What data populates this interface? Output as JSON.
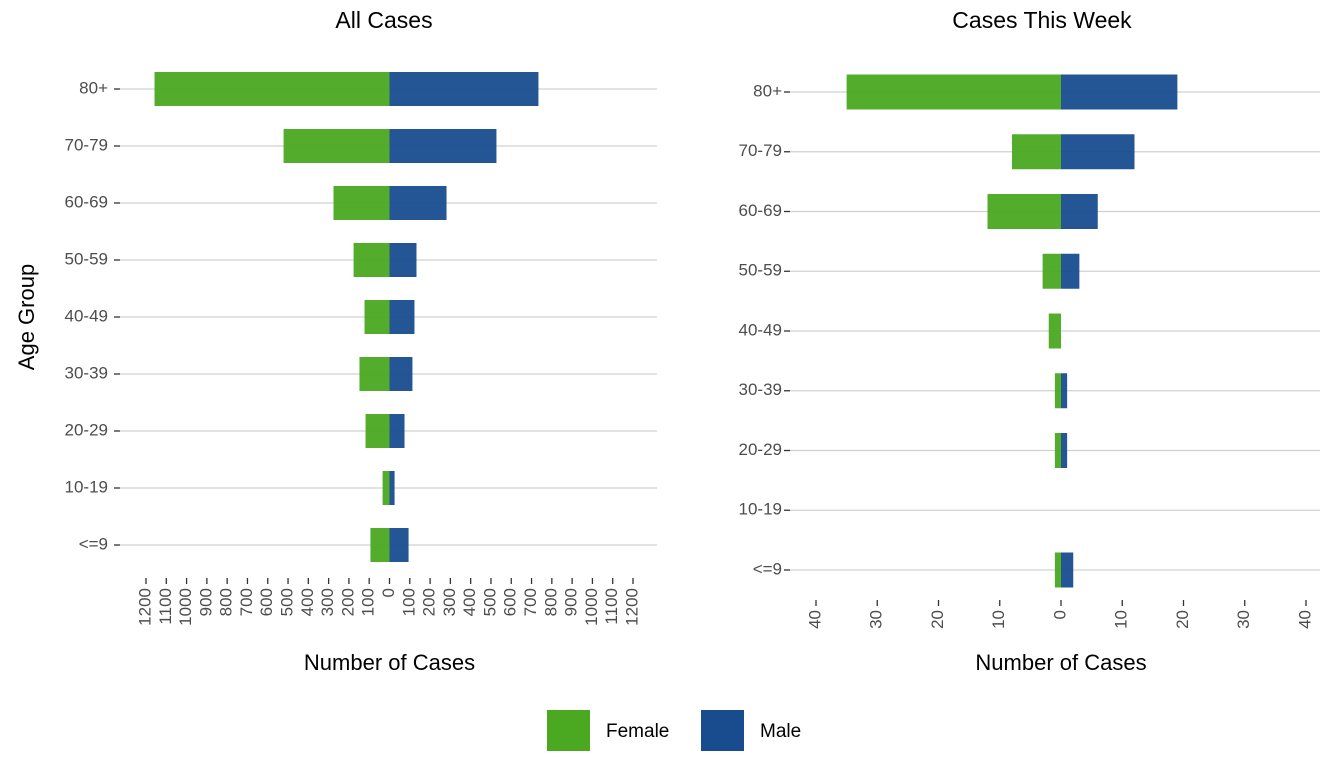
{
  "chart_data": [
    {
      "type": "bar",
      "orientation": "horizontal",
      "stacked": "diverging",
      "title": "All Cases",
      "xlabel": "Number of Cases",
      "ylabel": "Age Group",
      "categories": [
        "80+",
        "70-79",
        "60-69",
        "50-59",
        "40-49",
        "30-39",
        "20-29",
        "10-19",
        "<=9"
      ],
      "series": [
        {
          "name": "Female",
          "color": "#4aa821",
          "values": [
            -1158,
            -522,
            -276,
            -177,
            -123,
            -148,
            -118,
            -34,
            -94
          ]
        },
        {
          "name": "Male",
          "color": "#184c8f",
          "values": [
            734,
            527,
            281,
            133,
            123,
            113,
            74,
            25,
            94
          ]
        }
      ],
      "xlim": [
        -1200,
        1200
      ],
      "xticks": [
        {
          "value": -1200,
          "label": "1200"
        },
        {
          "value": -1100,
          "label": "1100"
        },
        {
          "value": -1000,
          "label": "1000"
        },
        {
          "value": -900,
          "label": "900"
        },
        {
          "value": -800,
          "label": "800"
        },
        {
          "value": -700,
          "label": "700"
        },
        {
          "value": -600,
          "label": "600"
        },
        {
          "value": -500,
          "label": "500"
        },
        {
          "value": -400,
          "label": "400"
        },
        {
          "value": -300,
          "label": "300"
        },
        {
          "value": -200,
          "label": "200"
        },
        {
          "value": -100,
          "label": "100"
        },
        0,
        100,
        200,
        300,
        400,
        500,
        600,
        700,
        800,
        900,
        1000,
        1100,
        1200
      ],
      "grid": true
    },
    {
      "type": "bar",
      "orientation": "horizontal",
      "stacked": "diverging",
      "title": "Cases This Week",
      "xlabel": "Number of Cases",
      "categories": [
        "80+",
        "70-79",
        "60-69",
        "50-59",
        "40-49",
        "30-39",
        "20-29",
        "10-19",
        "<=9"
      ],
      "series": [
        {
          "name": "Female",
          "color": "#4aa821",
          "values": [
            -35,
            -8,
            -12,
            -3,
            -2,
            -1,
            -1,
            0,
            -1
          ]
        },
        {
          "name": "Male",
          "color": "#184c8f",
          "values": [
            19,
            12,
            6,
            3,
            0,
            1,
            1,
            0,
            2
          ]
        }
      ],
      "xlim": [
        -40,
        40
      ],
      "xticks": [
        {
          "value": -40,
          "label": "40"
        },
        {
          "value": -30,
          "label": "30"
        },
        {
          "value": -20,
          "label": "20"
        },
        {
          "value": -10,
          "label": "10"
        },
        0,
        10,
        20,
        30,
        40
      ],
      "grid": true
    }
  ]
}
